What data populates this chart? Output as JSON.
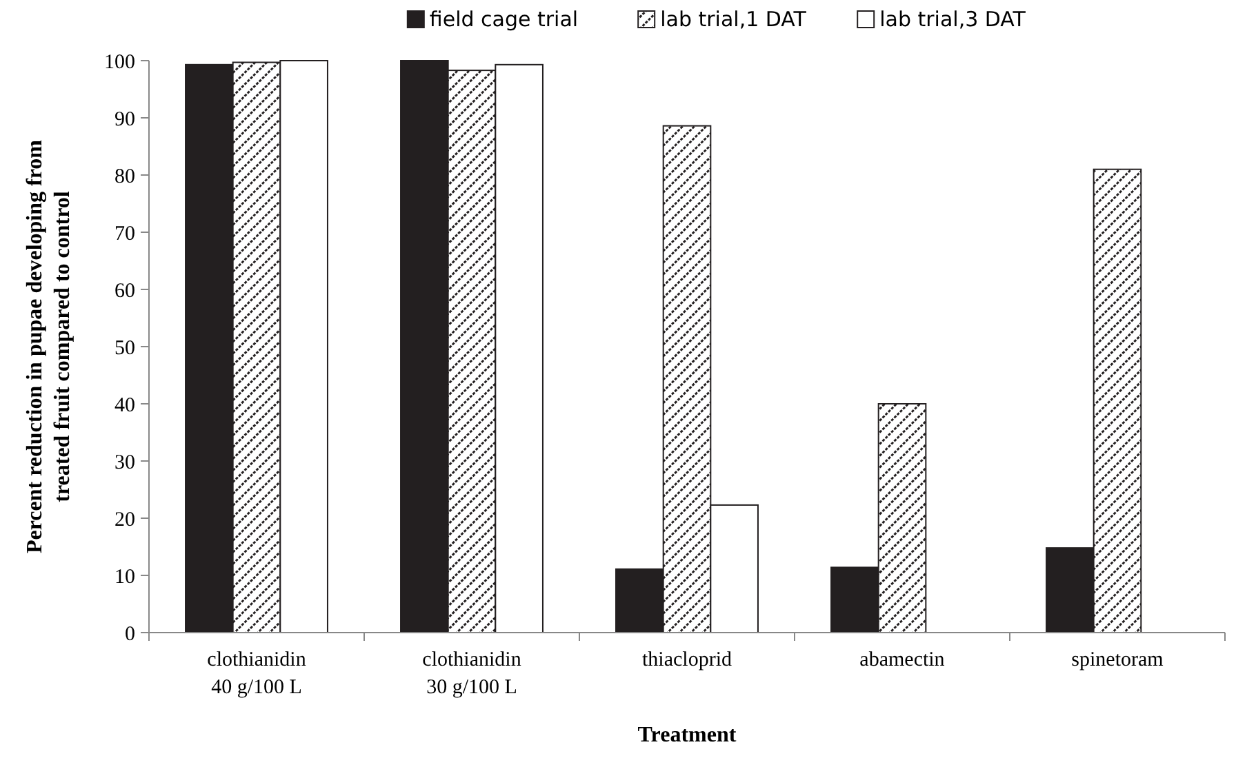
{
  "chart_data": {
    "type": "bar",
    "xlabel": "Treatment",
    "ylabel": "Percent reduction in pupae developing from\ntreated fruit compared to control",
    "categories": [
      "clothianidin\n40 g/100 L",
      "clothianidin\n30 g/100 L",
      "thiacloprid",
      "abamectin",
      "spinetoram"
    ],
    "series": [
      {
        "name": "field cage trial",
        "color": "#231f20",
        "values": [
          99.3,
          100,
          11.1,
          11.4,
          14.8
        ]
      },
      {
        "name": "lab trial,1 DAT",
        "color": "#231f20",
        "values": [
          99.7,
          98.3,
          88.6,
          40.0,
          81.0
        ]
      },
      {
        "name": "lab trial,3 DAT",
        "color": "#ffffff",
        "values": [
          100,
          99.3,
          22.3,
          null,
          null
        ]
      }
    ],
    "ylim": [
      0,
      100
    ],
    "yticks": [
      0,
      10,
      20,
      30,
      40,
      50,
      60,
      70,
      80,
      90,
      100
    ],
    "grid": false,
    "legend": "top"
  }
}
